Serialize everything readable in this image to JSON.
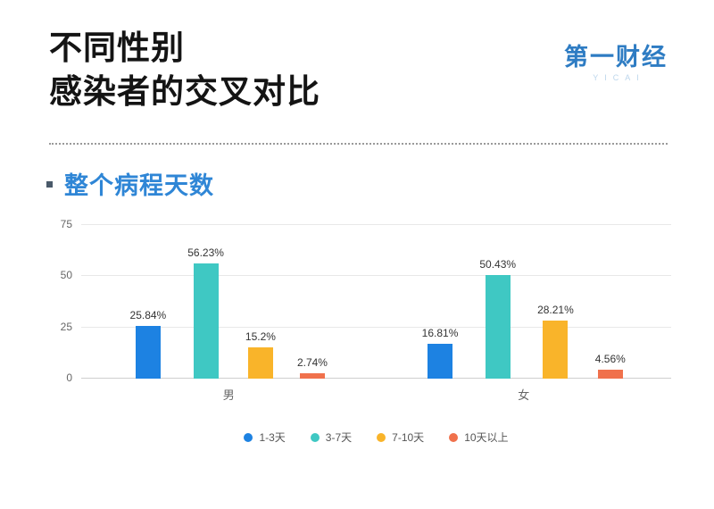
{
  "header": {
    "title_line1": "不同性别",
    "title_line2": "感染者的交叉对比",
    "logo_text": "第一财经",
    "logo_sub": "YICAI"
  },
  "section": {
    "heading": "整个病程天数"
  },
  "chart_data": {
    "type": "bar",
    "title": "整个病程天数",
    "categories": [
      "男",
      "女"
    ],
    "series": [
      {
        "name": "1-3天",
        "color": "#1d82e2",
        "values": [
          25.84,
          16.81
        ],
        "labels": [
          "25.84%",
          "16.81%"
        ]
      },
      {
        "name": "3-7天",
        "color": "#3fc8c3",
        "values": [
          56.23,
          50.43
        ],
        "labels": [
          "56.23%",
          "50.43%"
        ]
      },
      {
        "name": "7-10天",
        "color": "#f9b42a",
        "values": [
          15.2,
          28.21
        ],
        "labels": [
          "15.2%",
          "28.21%"
        ]
      },
      {
        "name": "10天以上",
        "color": "#f0714c",
        "values": [
          2.74,
          4.56
        ],
        "labels": [
          "2.74%",
          "4.56%"
        ]
      }
    ],
    "xlabel": "",
    "ylabel": "",
    "ylim": [
      0,
      75
    ],
    "yticks": [
      0,
      25,
      50,
      75
    ],
    "grid": true,
    "legend_position": "bottom"
  }
}
